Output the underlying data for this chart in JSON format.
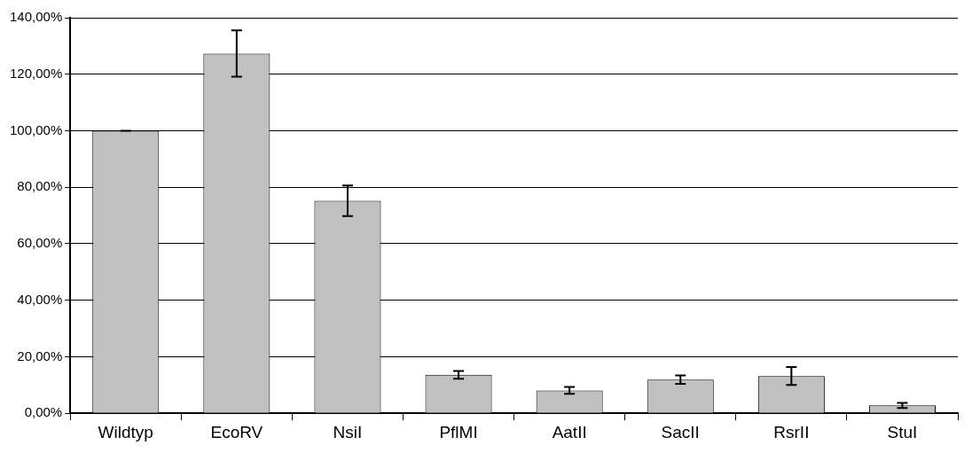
{
  "chart_data": {
    "type": "bar",
    "categories": [
      "Wildtyp",
      "EcoRV",
      "NsiI",
      "PflMI",
      "AatII",
      "SacII",
      "RsrII",
      "StuI"
    ],
    "values": [
      100,
      127.3,
      75.2,
      13.6,
      8.1,
      11.9,
      13.2,
      2.8
    ],
    "errors": [
      0,
      8.2,
      5.4,
      1.4,
      1.2,
      1.5,
      3.2,
      0.9
    ],
    "color": "#c0c0c0",
    "ylim": [
      0,
      140
    ],
    "yticks": [
      {
        "value": 0,
        "label": "0,00%"
      },
      {
        "value": 20,
        "label": "20,00%"
      },
      {
        "value": 40,
        "label": "40,00%"
      },
      {
        "value": 60,
        "label": "60,00%"
      },
      {
        "value": 80,
        "label": "80,00%"
      },
      {
        "value": 100,
        "label": "100,00%"
      },
      {
        "value": 120,
        "label": "120,00%"
      },
      {
        "value": 140,
        "label": "140,00%"
      }
    ],
    "grid": "y"
  }
}
